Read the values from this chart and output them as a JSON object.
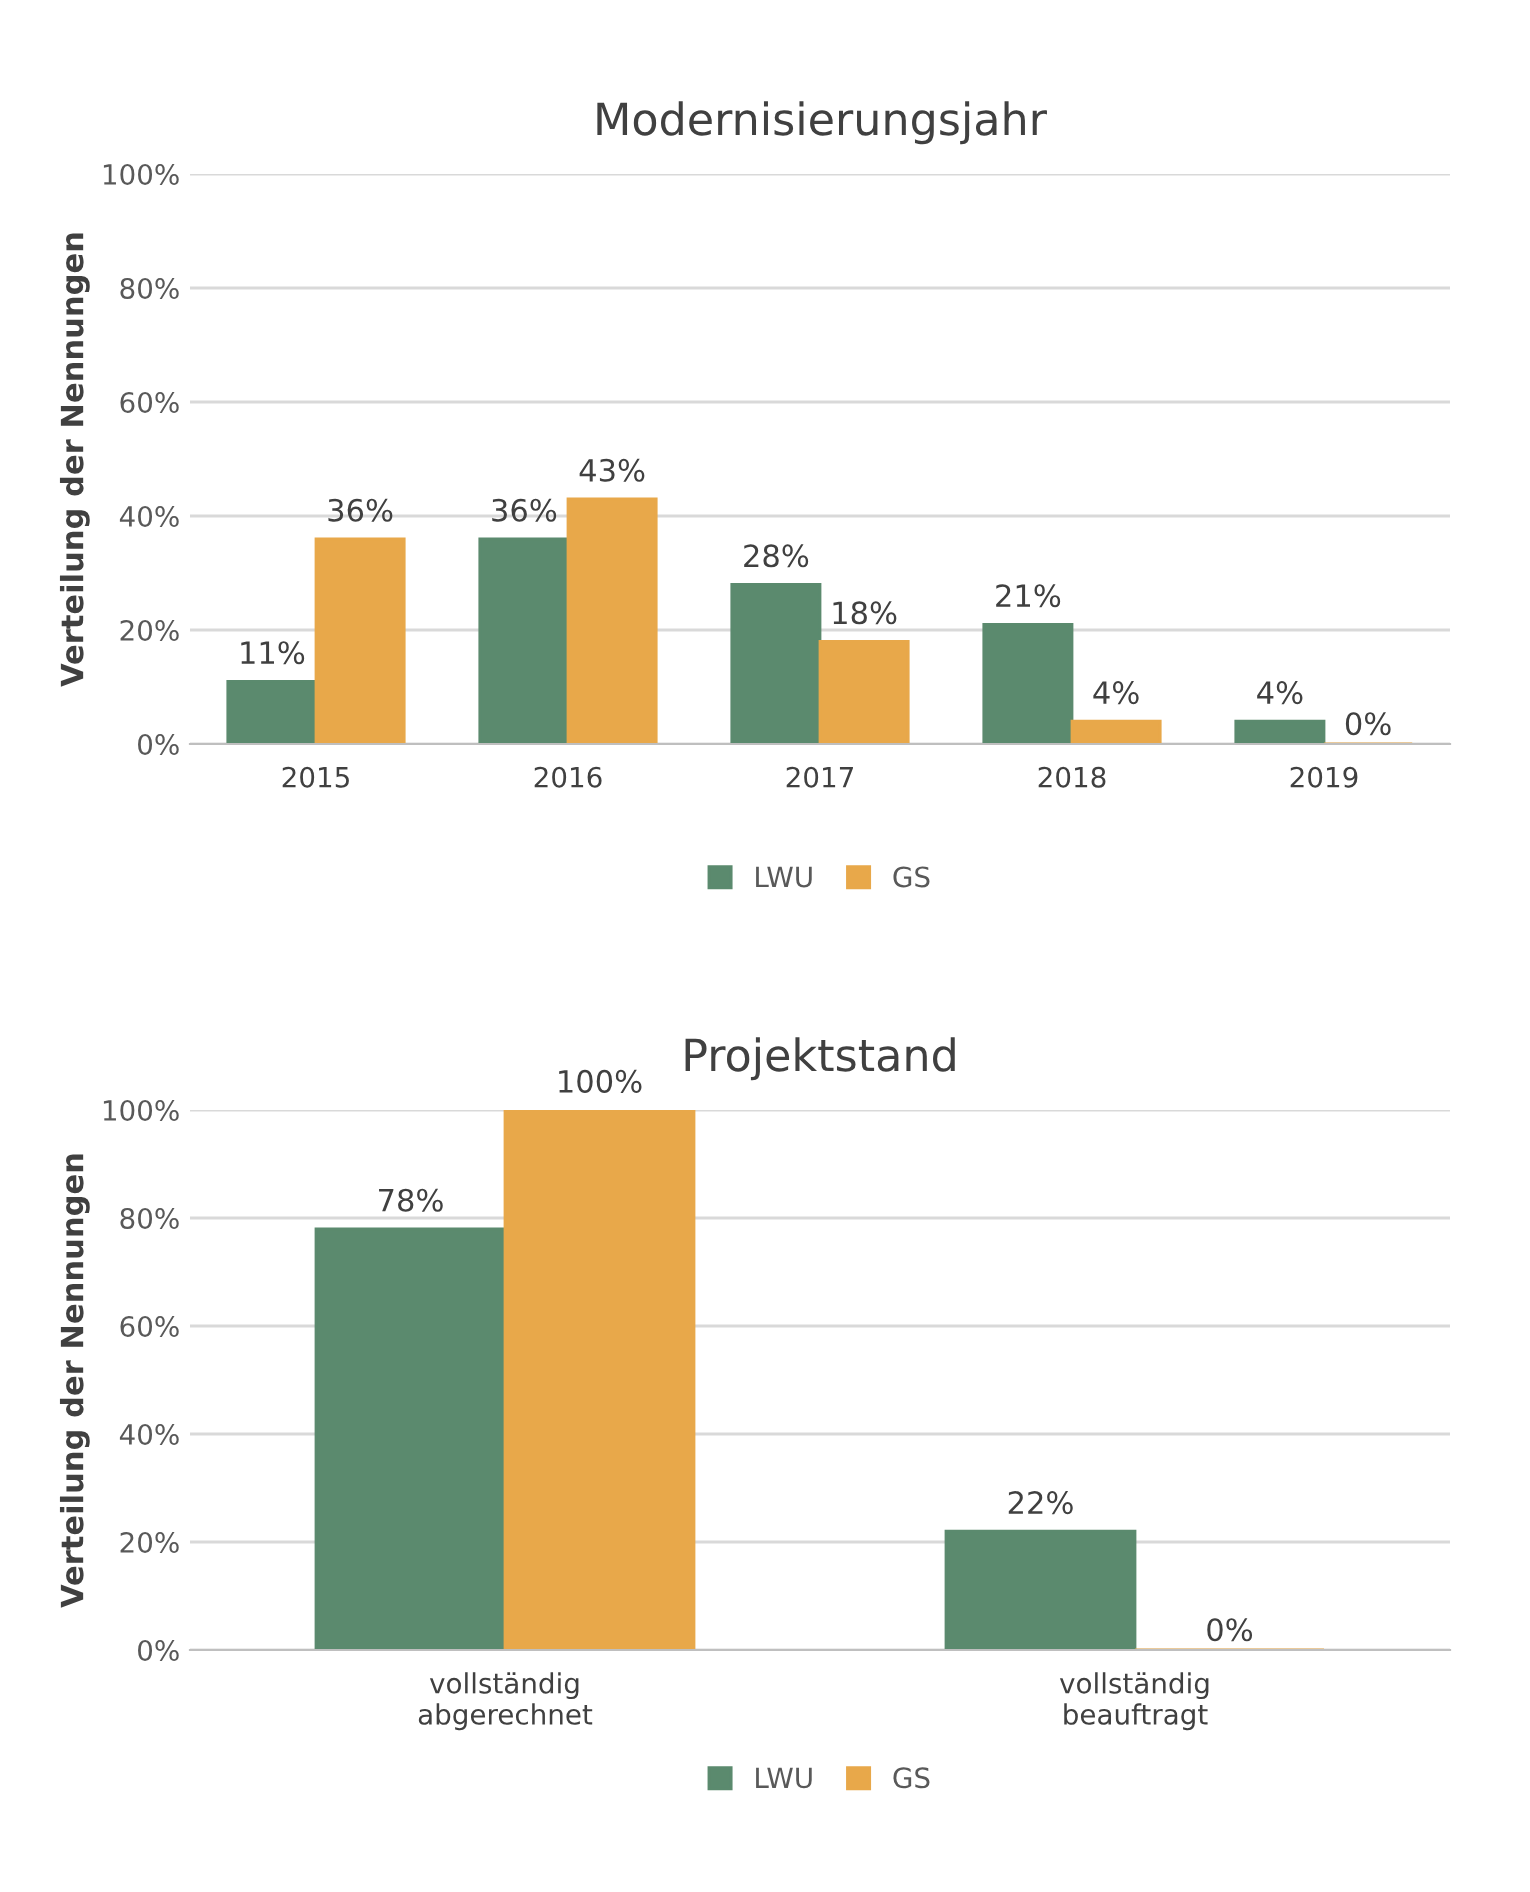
{
  "chart_data": [
    {
      "type": "bar",
      "title": "Modernisierungsjahr",
      "ylabel": "Verteilung der Nennungen",
      "categories": [
        "2015",
        "2016",
        "2017",
        "2018",
        "2019"
      ],
      "series": [
        {
          "name": "LWU",
          "color": "#5b8a6e",
          "values": [
            11,
            36,
            28,
            21,
            4
          ],
          "value_labels": [
            "11%",
            "36%",
            "28%",
            "21%",
            "4%"
          ]
        },
        {
          "name": "GS",
          "color": "#e8a84a",
          "values": [
            36,
            43,
            18,
            4,
            0
          ],
          "value_labels": [
            "36%",
            "43%",
            "18%",
            "4%",
            "0%"
          ]
        }
      ],
      "ylim": [
        0,
        100
      ],
      "yticks": [
        {
          "value": 0,
          "label": "0%"
        },
        {
          "value": 20,
          "label": "20%"
        },
        {
          "value": 40,
          "label": "40%"
        },
        {
          "value": 60,
          "label": "60%"
        },
        {
          "value": 80,
          "label": "80%"
        },
        {
          "value": 100,
          "label": "100%"
        }
      ],
      "grid": "y",
      "legend": "bottom"
    },
    {
      "type": "bar",
      "title": "Projektstand",
      "ylabel": "Verteilung der Nennungen",
      "categories": [
        "vollständig\nabgerechnet",
        "vollständig\nbeauftragt"
      ],
      "series": [
        {
          "name": "LWU",
          "color": "#5b8a6e",
          "values": [
            78,
            22
          ],
          "value_labels": [
            "78%",
            "22%"
          ]
        },
        {
          "name": "GS",
          "color": "#e8a84a",
          "values": [
            100,
            0
          ],
          "value_labels": [
            "100%",
            "0%"
          ]
        }
      ],
      "ylim": [
        0,
        100
      ],
      "yticks": [
        {
          "value": 0,
          "label": "0%"
        },
        {
          "value": 20,
          "label": "20%"
        },
        {
          "value": 40,
          "label": "40%"
        },
        {
          "value": 60,
          "label": "60%"
        },
        {
          "value": 80,
          "label": "80%"
        },
        {
          "value": 100,
          "label": "100%"
        }
      ],
      "grid": "y",
      "legend": "bottom"
    }
  ]
}
